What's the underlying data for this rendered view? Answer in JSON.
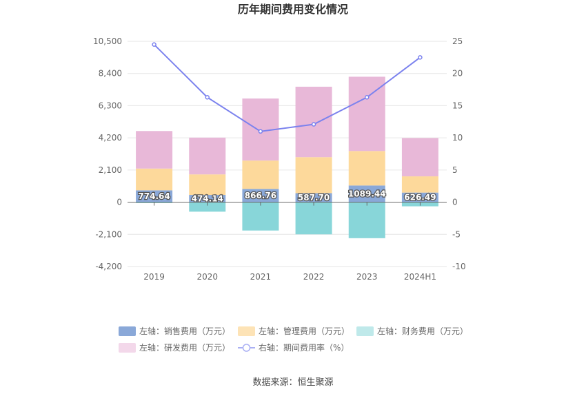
{
  "chart_data": {
    "type": "bar",
    "title": "历年期间费用变化情况",
    "categories": [
      "2019",
      "2020",
      "2021",
      "2022",
      "2023",
      "2024H1"
    ],
    "left_axis": {
      "min": -4200,
      "max": 10500,
      "ticks": [
        "-4,200",
        "-2,100",
        "0",
        "2,100",
        "4,200",
        "6,300",
        "8,400",
        "10,500"
      ],
      "tick_values": [
        -4200,
        -2100,
        0,
        2100,
        4200,
        6300,
        8400,
        10500
      ]
    },
    "right_axis": {
      "min": -10,
      "max": 25,
      "ticks": [
        "-10",
        "-5",
        "0",
        "5",
        "10",
        "15",
        "20",
        "25"
      ],
      "tick_values": [
        -10,
        -5,
        0,
        5,
        10,
        15,
        20,
        25
      ]
    },
    "series": [
      {
        "name": "左轴：销售费用（万元）",
        "type": "bar",
        "color": "#8aa8d8",
        "values": [
          774.64,
          474.14,
          866.76,
          587.7,
          1089.44,
          626.49
        ],
        "labels": [
          "774.64",
          "474.14",
          "866.76",
          "587.70",
          "1089.44",
          "626.49"
        ]
      },
      {
        "name": "左轴：管理费用（万元）",
        "type": "bar",
        "color": "#fdd99b",
        "values": [
          1420,
          1340,
          1850,
          2350,
          2250,
          1060
        ]
      },
      {
        "name": "左轴：财务费用（万元）",
        "type": "bar",
        "color": "#88d6d9",
        "values": [
          -60,
          -620,
          -1850,
          -2100,
          -2350,
          -270
        ]
      },
      {
        "name": "左轴：研发费用（万元）",
        "type": "bar",
        "color": "#e8b8d8",
        "values": [
          2450,
          2400,
          4050,
          4600,
          4850,
          2500
        ]
      },
      {
        "name": "右轴：期间费用率（%）",
        "type": "line",
        "color": "#7b82ee",
        "axis": "right",
        "values": [
          24.5,
          16.3,
          11.0,
          12.1,
          16.3,
          22.5
        ]
      }
    ],
    "grid": true,
    "legend_position": "bottom"
  },
  "legend": [
    {
      "label": "左轴：销售费用（万元）",
      "color": "#8aa8d8",
      "kind": "box"
    },
    {
      "label": "左轴：管理费用（万元）",
      "color": "#fde3b6",
      "kind": "box"
    },
    {
      "label": "左轴：财务费用（万元）",
      "color": "#bfe9ea",
      "kind": "box"
    },
    {
      "label": "左轴：研发费用（万元）",
      "color": "#f3d8ea",
      "kind": "box"
    },
    {
      "label": "右轴：期间费用率（%）",
      "color": "#aab0f4",
      "kind": "line"
    }
  ],
  "source": "数据来源：恒生聚源"
}
